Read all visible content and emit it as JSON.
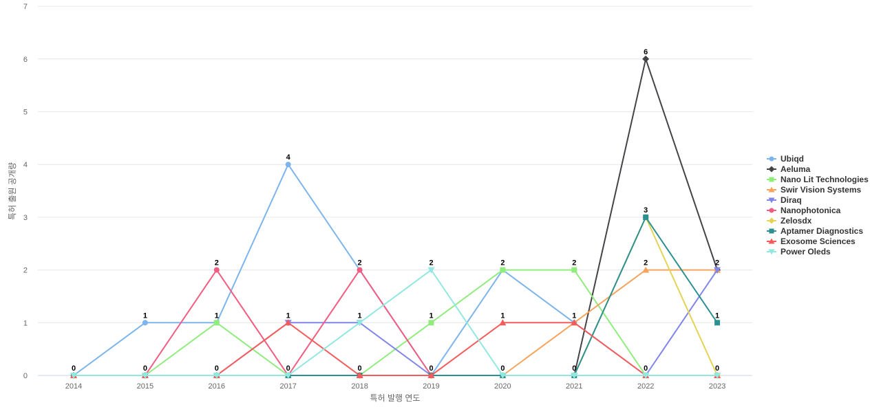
{
  "chart_data": {
    "type": "line",
    "title": "",
    "xlabel": "특허 발행 연도",
    "ylabel": "특허 출원 공개량",
    "x": [
      "2014",
      "2015",
      "2016",
      "2017",
      "2018",
      "2019",
      "2020",
      "2021",
      "2022",
      "2023"
    ],
    "yticks": [
      "0",
      "1",
      "2",
      "3",
      "4",
      "5",
      "6",
      "7"
    ],
    "ylim": [
      0,
      7
    ],
    "grid": true,
    "legend_position": "right",
    "series": [
      {
        "name": "Ubiqd",
        "color": "#7cb5ec",
        "marker": "circle",
        "values": [
          0,
          1,
          1,
          4,
          2,
          0,
          2,
          1,
          0,
          0
        ]
      },
      {
        "name": "Aeluma",
        "color": "#434348",
        "marker": "diamond",
        "values": [
          0,
          0,
          0,
          0,
          0,
          0,
          0,
          0,
          6,
          2
        ]
      },
      {
        "name": "Nano Lit Technologies",
        "color": "#90ed7d",
        "marker": "square",
        "values": [
          0,
          0,
          1,
          0,
          0,
          1,
          2,
          2,
          0,
          0
        ]
      },
      {
        "name": "Swir Vision Systems",
        "color": "#f7a35c",
        "marker": "triangle",
        "values": [
          0,
          0,
          0,
          0,
          0,
          0,
          0,
          1,
          2,
          2
        ]
      },
      {
        "name": "Diraq",
        "color": "#8085e9",
        "marker": "triangle-down",
        "values": [
          0,
          0,
          0,
          1,
          1,
          0,
          0,
          0,
          0,
          2
        ]
      },
      {
        "name": "Nanophotonica",
        "color": "#f15c80",
        "marker": "circle",
        "values": [
          0,
          0,
          2,
          0,
          2,
          0,
          0,
          0,
          0,
          0
        ]
      },
      {
        "name": "Zelosdx",
        "color": "#e4d354",
        "marker": "diamond",
        "values": [
          0,
          0,
          0,
          0,
          0,
          0,
          0,
          0,
          3,
          0
        ]
      },
      {
        "name": "Aptamer Diagnostics",
        "color": "#2b908f",
        "marker": "square",
        "values": [
          0,
          0,
          0,
          0,
          0,
          0,
          0,
          0,
          3,
          1
        ]
      },
      {
        "name": "Exosome Sciences",
        "color": "#f45b5b",
        "marker": "triangle",
        "values": [
          0,
          0,
          0,
          1,
          0,
          0,
          1,
          1,
          0,
          0
        ]
      },
      {
        "name": "Power Oleds",
        "color": "#91e8e1",
        "marker": "triangle-down",
        "values": [
          0,
          0,
          0,
          0,
          1,
          2,
          0,
          0,
          0,
          0
        ]
      }
    ],
    "data_labels": [
      {
        "x": "2014",
        "text": "0",
        "value": 0
      },
      {
        "x": "2015",
        "text": "1",
        "value": 1
      },
      {
        "x": "2015",
        "text": "0",
        "value": 0
      },
      {
        "x": "2016",
        "text": "2",
        "value": 2
      },
      {
        "x": "2016",
        "text": "1",
        "value": 1
      },
      {
        "x": "2016",
        "text": "0",
        "value": 0
      },
      {
        "x": "2017",
        "text": "4",
        "value": 4
      },
      {
        "x": "2017",
        "text": "1",
        "value": 1
      },
      {
        "x": "2017",
        "text": "0",
        "value": 0
      },
      {
        "x": "2018",
        "text": "2",
        "value": 2
      },
      {
        "x": "2018",
        "text": "1",
        "value": 1
      },
      {
        "x": "2018",
        "text": "0",
        "value": 0
      },
      {
        "x": "2019",
        "text": "2",
        "value": 2
      },
      {
        "x": "2019",
        "text": "1",
        "value": 1
      },
      {
        "x": "2019",
        "text": "0",
        "value": 0
      },
      {
        "x": "2020",
        "text": "2",
        "value": 2
      },
      {
        "x": "2020",
        "text": "1",
        "value": 1
      },
      {
        "x": "2020",
        "text": "0",
        "value": 0
      },
      {
        "x": "2021",
        "text": "2",
        "value": 2
      },
      {
        "x": "2021",
        "text": "1",
        "value": 1
      },
      {
        "x": "2021",
        "text": "0",
        "value": 0
      },
      {
        "x": "2022",
        "text": "6",
        "value": 6
      },
      {
        "x": "2022",
        "text": "3",
        "value": 3
      },
      {
        "x": "2022",
        "text": "2",
        "value": 2
      },
      {
        "x": "2022",
        "text": "0",
        "value": 0
      },
      {
        "x": "2023",
        "text": "2",
        "value": 2
      },
      {
        "x": "2023",
        "text": "1",
        "value": 1
      },
      {
        "x": "2023",
        "text": "0",
        "value": 0
      }
    ]
  }
}
